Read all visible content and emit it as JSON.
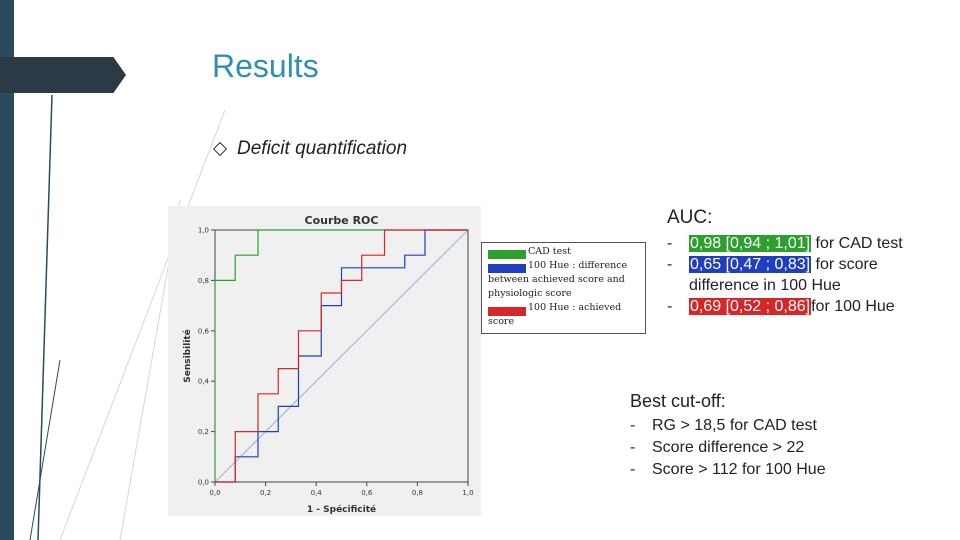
{
  "slide": {
    "title": "Results",
    "bullet": "Deficit quantification"
  },
  "chart_data": {
    "type": "line",
    "title": "Courbe ROC",
    "xlabel": "1 - Spécificité",
    "ylabel": "Sensibilité",
    "xlim": [
      0,
      1
    ],
    "ylim": [
      0,
      1
    ],
    "xticks": [
      "0,0",
      "0,2",
      "0,4",
      "0,6",
      "0,8",
      "1,0"
    ],
    "yticks": [
      "0,0",
      "0,2",
      "0,4",
      "0,6",
      "0,8",
      "1,0"
    ],
    "grid": false,
    "legend_position": "right",
    "series": [
      {
        "name": "CAD test",
        "color": "#2ca02c",
        "x": [
          0,
          0,
          0.08,
          0.08,
          0.17,
          0.17,
          1.0
        ],
        "y": [
          0,
          0.8,
          0.8,
          0.9,
          0.9,
          1.0,
          1.0
        ]
      },
      {
        "name": "100 Hue : difference between achieved score and physiologic score",
        "color": "#1f3fbf",
        "x": [
          0.0,
          0.08,
          0.08,
          0.17,
          0.17,
          0.25,
          0.25,
          0.33,
          0.33,
          0.42,
          0.42,
          0.5,
          0.5,
          0.75,
          0.75,
          0.83,
          0.83,
          1.0
        ],
        "y": [
          0.0,
          0.0,
          0.1,
          0.1,
          0.2,
          0.2,
          0.3,
          0.3,
          0.5,
          0.5,
          0.7,
          0.7,
          0.85,
          0.85,
          0.9,
          0.9,
          1.0,
          1.0
        ]
      },
      {
        "name": "100 Hue : achieved score",
        "color": "#d62728",
        "x": [
          0.0,
          0.08,
          0.08,
          0.17,
          0.17,
          0.25,
          0.25,
          0.33,
          0.33,
          0.42,
          0.42,
          0.5,
          0.5,
          0.58,
          0.58,
          0.67,
          0.67,
          1.0
        ],
        "y": [
          0.0,
          0.0,
          0.2,
          0.2,
          0.35,
          0.35,
          0.45,
          0.45,
          0.6,
          0.6,
          0.75,
          0.75,
          0.8,
          0.8,
          0.9,
          0.9,
          1.0,
          1.0
        ]
      },
      {
        "name": "",
        "color": "#a8b8d8",
        "x": [
          0,
          1
        ],
        "y": [
          0,
          1
        ]
      }
    ]
  },
  "legend": {
    "items": [
      {
        "label": "CAD test",
        "color": "#2ca02c"
      },
      {
        "label": "100 Hue : difference between achieved score and physiologic score",
        "color": "#1f3fbf"
      },
      {
        "label": "100 Hue : achieved score",
        "color": "#d62728"
      }
    ]
  },
  "auc": {
    "title": "AUC:",
    "rows": [
      {
        "dash": "-",
        "value": "0,98 [0,94 ; 1,01]",
        "color": "#2ca02c",
        "text": " for CAD test"
      },
      {
        "dash": "-",
        "value": "0,65 [0,47 ; 0,83]",
        "color": "#1f3fbf",
        "text": " for score"
      },
      {
        "dash": "",
        "value": "",
        "color": "",
        "text": "difference in 100 Hue"
      },
      {
        "dash": "-",
        "value": "0,69 [0,52 ; 0,86]",
        "color": "#d62728",
        "text": "for 100 Hue"
      }
    ]
  },
  "best": {
    "title": "Best cut-off:",
    "rows": [
      {
        "dash": "-",
        "text": "RG > 18,5 for CAD test"
      },
      {
        "dash": "-",
        "text": "Score difference > 22"
      },
      {
        "dash": "-",
        "text": "Score > 112 for 100 Hue"
      }
    ]
  }
}
